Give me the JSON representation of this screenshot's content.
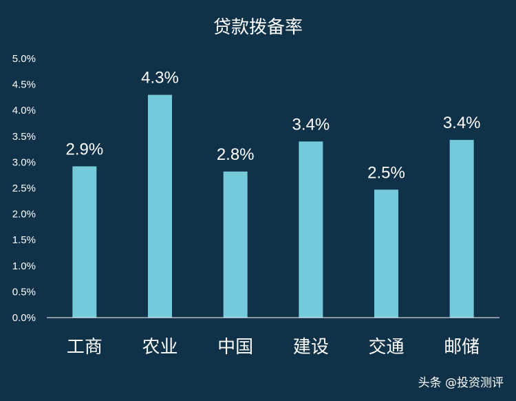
{
  "chart_data": {
    "type": "bar",
    "title": "贷款拨备率",
    "categories": [
      "工商",
      "农业",
      "中国",
      "建设",
      "交通",
      "邮储"
    ],
    "values": [
      2.92,
      4.3,
      2.82,
      3.4,
      2.47,
      3.43
    ],
    "data_labels": [
      "2.9%",
      "4.3%",
      "2.8%",
      "3.4%",
      "2.5%",
      "3.4%"
    ],
    "ylim": [
      0,
      5.0
    ],
    "yticks": [
      "0.0%",
      "0.5%",
      "1.0%",
      "1.5%",
      "2.0%",
      "2.5%",
      "3.0%",
      "3.5%",
      "4.0%",
      "4.5%",
      "5.0%"
    ],
    "xlabel": "",
    "ylabel": "",
    "grid": false,
    "colors": {
      "bar": "#74c9da",
      "background": "#0f3249",
      "axis": "#ffffff"
    }
  },
  "watermark": "头条 @投资测评"
}
